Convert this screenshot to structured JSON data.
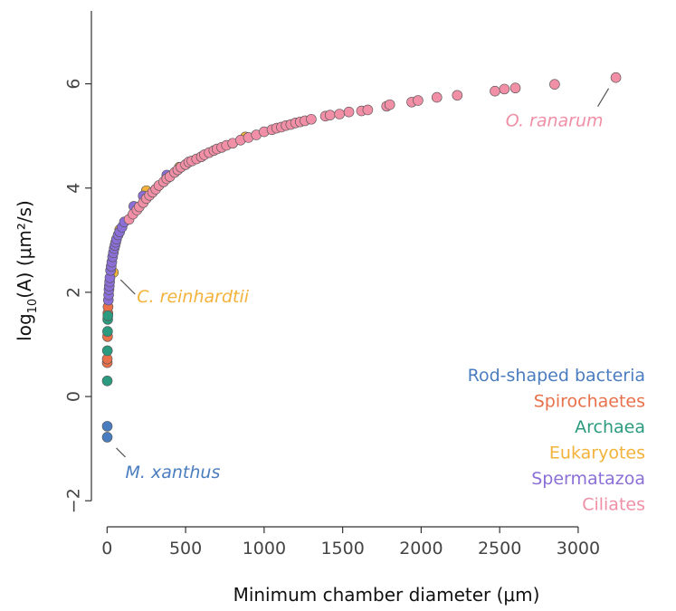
{
  "chart_data": {
    "type": "scatter",
    "xlabel": "Minimum chamber diameter (μm)",
    "ylabel": {
      "pre": "log",
      "sub": "10",
      "post": "(A) (μm²/s)"
    },
    "xlim": [
      -100,
      3450
    ],
    "ylim": [
      -2.5,
      7.4
    ],
    "xticks": [
      "0",
      "500",
      "1000",
      "1500",
      "2000",
      "2500",
      "3000"
    ],
    "xtick_values": [
      0,
      500,
      1000,
      1500,
      2000,
      2500,
      3000
    ],
    "yticks": [
      "−2",
      "0",
      "2",
      "4",
      "6"
    ],
    "ytick_values": [
      -2,
      0,
      2,
      4,
      6
    ],
    "legend_position": "bottom-right",
    "series": [
      {
        "name": "Rod-shaped bacteria",
        "color": "#4a7dbf",
        "points": [
          [
            1,
            -0.78
          ],
          [
            1,
            -0.57
          ]
        ]
      },
      {
        "name": "Spirochaetes",
        "color": "#e8704a",
        "points": [
          [
            1,
            0.65
          ],
          [
            1,
            0.72
          ],
          [
            3,
            1.15
          ],
          [
            5,
            1.6
          ],
          [
            6,
            1.72
          ]
        ]
      },
      {
        "name": "Archaea",
        "color": "#2b9a7e",
        "points": [
          [
            1,
            0.3
          ],
          [
            2,
            0.88
          ],
          [
            3,
            1.25
          ],
          [
            4,
            1.48
          ],
          [
            5,
            1.55
          ]
        ]
      },
      {
        "name": "Eukaryotes",
        "color": "#f3b23a",
        "points": [
          [
            40,
            2.38
          ],
          [
            80,
            3.2
          ],
          [
            250,
            3.95
          ],
          [
            460,
            4.4
          ],
          [
            880,
            4.98
          ]
        ]
      },
      {
        "name": "Spermatazoa",
        "color": "#8b6fd6",
        "points": [
          [
            8,
            1.85
          ],
          [
            10,
            1.95
          ],
          [
            12,
            2.05
          ],
          [
            14,
            2.12
          ],
          [
            16,
            2.2
          ],
          [
            18,
            2.28
          ],
          [
            22,
            2.42
          ],
          [
            26,
            2.5
          ],
          [
            30,
            2.58
          ],
          [
            35,
            2.68
          ],
          [
            40,
            2.76
          ],
          [
            45,
            2.84
          ],
          [
            50,
            2.9
          ],
          [
            55,
            2.96
          ],
          [
            60,
            3.02
          ],
          [
            70,
            3.1
          ],
          [
            80,
            3.16
          ],
          [
            95,
            3.25
          ],
          [
            110,
            3.35
          ],
          [
            170,
            3.65
          ],
          [
            230,
            3.85
          ],
          [
            380,
            4.25
          ]
        ]
      },
      {
        "name": "Ciliates",
        "color": "#f08fa5",
        "points": [
          [
            140,
            3.4
          ],
          [
            165,
            3.5
          ],
          [
            190,
            3.58
          ],
          [
            205,
            3.64
          ],
          [
            230,
            3.72
          ],
          [
            250,
            3.8
          ],
          [
            270,
            3.86
          ],
          [
            290,
            3.92
          ],
          [
            310,
            3.98
          ],
          [
            330,
            4.05
          ],
          [
            360,
            4.12
          ],
          [
            380,
            4.18
          ],
          [
            400,
            4.22
          ],
          [
            430,
            4.3
          ],
          [
            450,
            4.35
          ],
          [
            470,
            4.4
          ],
          [
            500,
            4.45
          ],
          [
            520,
            4.5
          ],
          [
            540,
            4.52
          ],
          [
            570,
            4.56
          ],
          [
            600,
            4.6
          ],
          [
            620,
            4.64
          ],
          [
            650,
            4.68
          ],
          [
            680,
            4.72
          ],
          [
            700,
            4.75
          ],
          [
            730,
            4.78
          ],
          [
            760,
            4.82
          ],
          [
            800,
            4.86
          ],
          [
            850,
            4.92
          ],
          [
            900,
            4.97
          ],
          [
            950,
            5.02
          ],
          [
            1000,
            5.08
          ],
          [
            1050,
            5.12
          ],
          [
            1080,
            5.15
          ],
          [
            1110,
            5.17
          ],
          [
            1140,
            5.2
          ],
          [
            1170,
            5.22
          ],
          [
            1200,
            5.25
          ],
          [
            1230,
            5.27
          ],
          [
            1260,
            5.29
          ],
          [
            1300,
            5.32
          ],
          [
            1390,
            5.38
          ],
          [
            1420,
            5.4
          ],
          [
            1480,
            5.42
          ],
          [
            1540,
            5.46
          ],
          [
            1620,
            5.48
          ],
          [
            1660,
            5.5
          ],
          [
            1780,
            5.57
          ],
          [
            1800,
            5.6
          ],
          [
            1940,
            5.65
          ],
          [
            1980,
            5.68
          ],
          [
            2100,
            5.74
          ],
          [
            2230,
            5.78
          ],
          [
            2470,
            5.86
          ],
          [
            2530,
            5.9
          ],
          [
            2600,
            5.92
          ],
          [
            2850,
            5.99
          ],
          [
            3240,
            6.12
          ]
        ]
      }
    ],
    "annotations": [
      {
        "text": "O. ranarum",
        "color": "#f08fa5",
        "point": [
          3240,
          6.12
        ]
      },
      {
        "text": "C. reinhardtii",
        "color": "#f3b23a",
        "point": [
          40,
          2.38
        ]
      },
      {
        "text": "M. xanthus",
        "color": "#4a7dbf",
        "point": [
          1,
          -0.78
        ]
      }
    ]
  }
}
